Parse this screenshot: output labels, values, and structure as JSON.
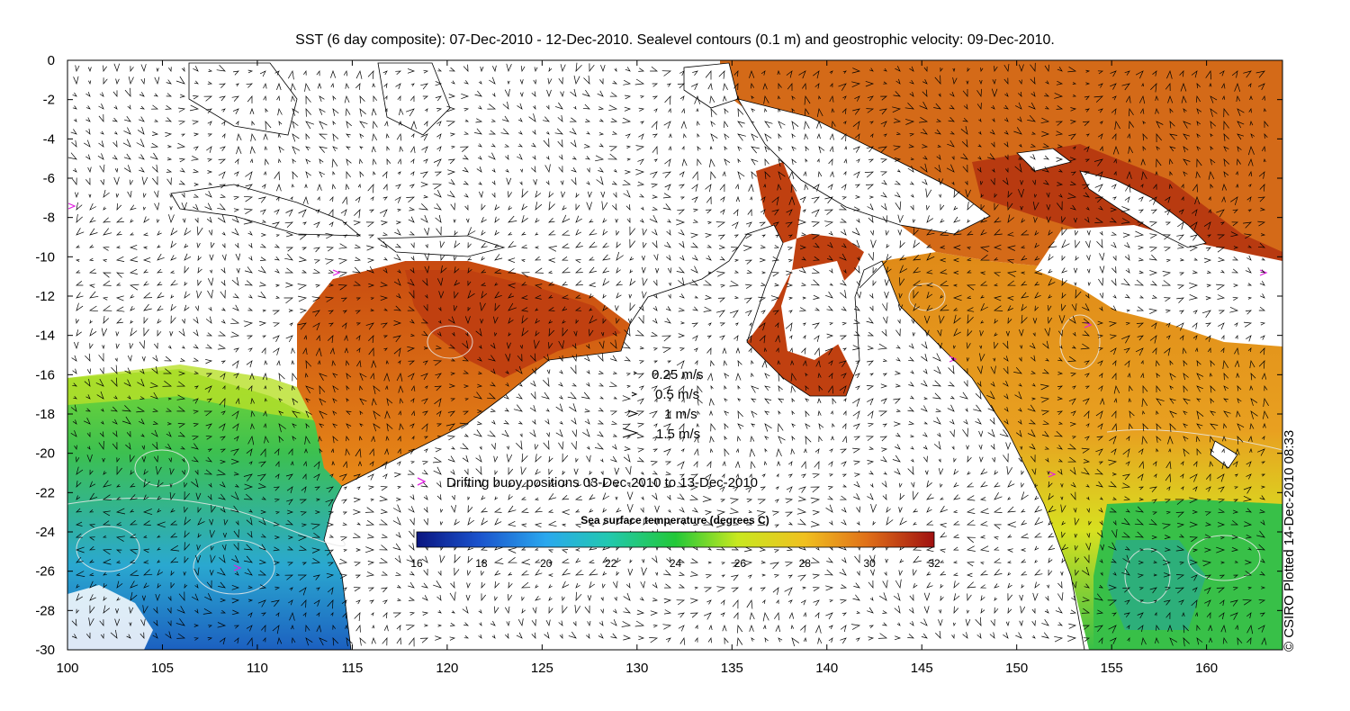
{
  "title": "SST (6 day composite): 07-Dec-2010 - 12-Dec-2010. Sealevel contours (0.1 m) and geostrophic velocity: 09-Dec-2010.",
  "credit": "© CSIRO Plotted 14-Dec-2010 08:33",
  "axes": {
    "lon_ticks": [
      "100",
      "105",
      "110",
      "115",
      "120",
      "125",
      "130",
      "135",
      "140",
      "145",
      "150",
      "155",
      "160"
    ],
    "lat_ticks": [
      "0",
      "-2",
      "-4",
      "-6",
      "-8",
      "-10",
      "-12",
      "-14",
      "-16",
      "-18",
      "-20",
      "-22",
      "-24",
      "-26",
      "-28",
      "-30"
    ],
    "lon_range": [
      100,
      164
    ],
    "lat_range": [
      -30,
      0
    ]
  },
  "velocity_legend": [
    "0.25 m/s",
    "0.5 m/s",
    "1 m/s",
    "1.5 m/s"
  ],
  "buoy_legend": "Drifting buoy positions 03-Dec-2010 to 13-Dec-2010",
  "colorbar": {
    "title": "Sea surface temperature (degrees C)",
    "ticks": [
      "16",
      "18",
      "20",
      "22",
      "24",
      "26",
      "28",
      "30",
      "32"
    ],
    "range": [
      16,
      32
    ]
  },
  "colors": {
    "buoy": "#e020e0",
    "land": "#ffffff",
    "contour": "#dddddd"
  }
}
